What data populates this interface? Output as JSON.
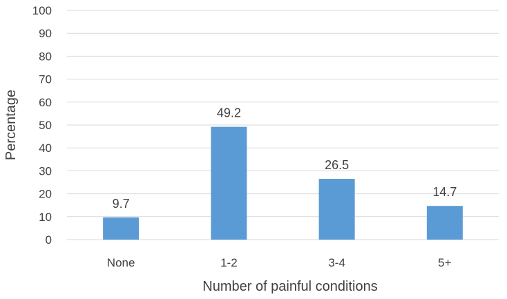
{
  "chart_data": {
    "type": "bar",
    "title": "",
    "xlabel": "Number of painful conditions",
    "ylabel": "Percentage",
    "categories": [
      "None",
      "1-2",
      "3-4",
      "5+"
    ],
    "values": [
      9.7,
      49.2,
      26.5,
      14.7
    ],
    "data_labels": [
      "9.7",
      "49.2",
      "26.5",
      "14.7"
    ],
    "ylim": [
      0,
      100
    ],
    "yticks": [
      "0",
      "10",
      "20",
      "30",
      "40",
      "50",
      "60",
      "70",
      "80",
      "90",
      "100"
    ],
    "grid": true,
    "legend": "none",
    "bar_color": "#5b9bd5",
    "gridline_color": "#d9d9d9",
    "text_color": "#404040"
  }
}
